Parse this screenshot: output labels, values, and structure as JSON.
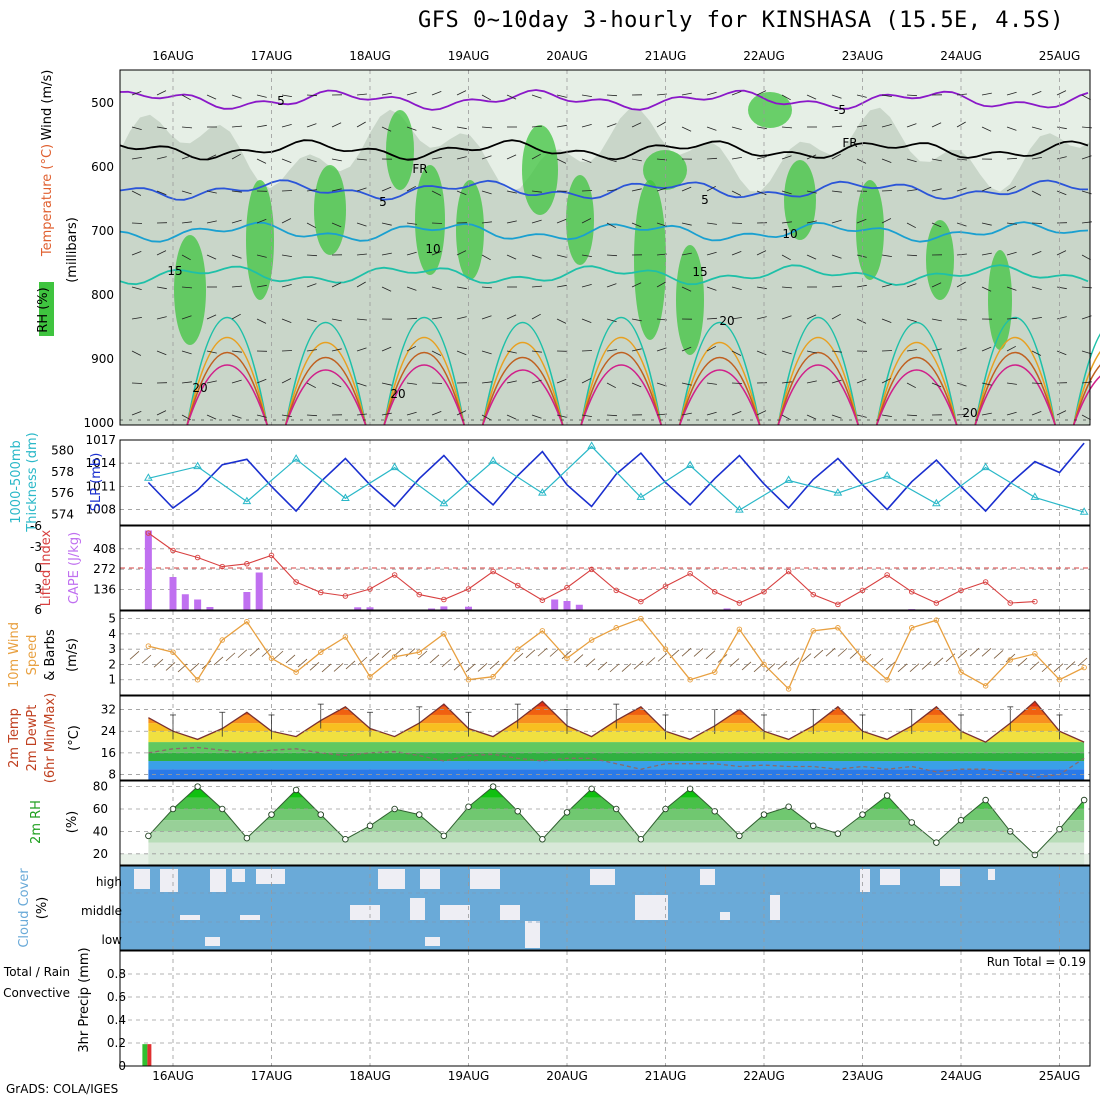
{
  "title": "GFS 0~10day 3-hourly for KINSHASA (15.5E, 4.5S)",
  "credit": "GrADS: COLA/IGES",
  "dates": [
    "16AUG",
    "17AUG",
    "18AUG",
    "19AUG",
    "20AUG",
    "21AUG",
    "22AUG",
    "23AUG",
    "24AUG",
    "25AUG"
  ],
  "colors": {
    "rh_green": "#3fc43f",
    "rh_light": "#e6efe6",
    "rh_mid": "#c9d6c9",
    "temp_purple": "#8a18c8",
    "temp_blue": "#2b55d8",
    "temp_cyan": "#1aa0d0",
    "temp_teal": "#1ec0a8",
    "temp_orange": "#e8a020",
    "temp_brown": "#c06020",
    "temp_magenta": "#d0208a",
    "slp_blue": "#1a2fcf",
    "thick_cyan": "#2ab8c8",
    "cape_purple": "#c070f0",
    "li_red": "#d84040",
    "wind_orange": "#e8a040",
    "temp_line": "#7a3030",
    "rh_dot": "#ffffff",
    "cloud_blue": "#6aaad8",
    "precip_green": "#30c030",
    "precip_red": "#e03030"
  },
  "panels": {
    "upper": {
      "label_rh": "RH (%)",
      "label_temp": "Temperature (°C)",
      "label_wind": "Wind (m/s)",
      "label_unit": "(millibars)",
      "yticks": [
        "500",
        "600",
        "700",
        "800",
        "900",
        "1000"
      ],
      "contour_labels": [
        "5",
        "-5",
        "FR",
        "FR",
        "5",
        "5",
        "10",
        "10",
        "15",
        "15",
        "20",
        "20",
        "20",
        "20"
      ]
    },
    "slp": {
      "label_a": "1000-500mb",
      "label_b": "Thickness (dm)",
      "label_c": "SLP (mb)",
      "left_ticks": [
        "580",
        "578",
        "576",
        "574"
      ],
      "right_ticks": [
        "1017",
        "1014",
        "1011",
        "1008"
      ]
    },
    "cape": {
      "label_a": "Lifted Index",
      "label_b": "CAPE (J/kg)",
      "left_ticks": [
        "-6",
        "-3",
        "0",
        "3",
        "6"
      ],
      "right_ticks": [
        "408",
        "272",
        "136"
      ]
    },
    "wind10": {
      "label_a": "10m Wind",
      "label_b": "Speed",
      "label_c": "& Barbs",
      "label_d": "(m/s)",
      "ticks": [
        "5",
        "4",
        "3",
        "2",
        "1"
      ]
    },
    "temp2m": {
      "label_a": "2m Temp",
      "label_b": "2m DewPt",
      "label_c": "(6hr Min/Max)",
      "label_d": "(°C)",
      "ticks": [
        "32",
        "24",
        "16",
        "8"
      ]
    },
    "rh2m": {
      "label_a": "2m RH",
      "label_b": "(%)",
      "ticks": [
        "80",
        "60",
        "40",
        "20"
      ]
    },
    "cloud": {
      "label_a": "Cloud Cover",
      "label_b": "(%)",
      "levels": [
        "high",
        "middle",
        "low"
      ]
    },
    "precip": {
      "label_a": "Total / Rain",
      "label_b": "Convective",
      "label_c": "3hr Precip (mm)",
      "ticks": [
        "0.8",
        "0.6",
        "0.4",
        "0.2",
        "0"
      ],
      "run_total": "Run Total = 0.19"
    }
  },
  "chart_data": [
    {
      "type": "line",
      "title": "Sea-level pressure",
      "ylabel": "SLP (mb)",
      "ylim": [
        1006,
        1017
      ],
      "x": [
        "15AUG18",
        "16AUG00",
        "16AUG06",
        "16AUG12",
        "16AUG18",
        "17AUG00",
        "17AUG06",
        "17AUG12",
        "17AUG18",
        "18AUG00",
        "18AUG06",
        "18AUG12",
        "18AUG18",
        "19AUG00",
        "19AUG06",
        "19AUG12",
        "19AUG18",
        "20AUG00",
        "20AUG06",
        "20AUG12",
        "20AUG18",
        "21AUG00",
        "21AUG06",
        "21AUG12",
        "21AUG18",
        "22AUG00",
        "22AUG06",
        "22AUG12",
        "22AUG18",
        "23AUG00",
        "23AUG06",
        "23AUG12",
        "23AUG18",
        "24AUG00",
        "24AUG06",
        "24AUG12",
        "24AUG18",
        "25AUG00",
        "25AUG06"
      ],
      "series": [
        {
          "name": "SLP",
          "values": [
            1011.5,
            1008.2,
            1010.5,
            1013.8,
            1014.5,
            1011.0,
            1007.8,
            1011.6,
            1014.6,
            1011.2,
            1008.4,
            1012.0,
            1015.0,
            1011.4,
            1008.6,
            1012.4,
            1015.5,
            1011.2,
            1008.4,
            1012.6,
            1015.3,
            1011.5,
            1008.6,
            1012.0,
            1015.0,
            1011.3,
            1008.2,
            1011.9,
            1014.6,
            1011.2,
            1008.0,
            1011.6,
            1014.4,
            1011.0,
            1007.8,
            1011.4,
            1014.2,
            1012.8,
            1016.6
          ]
        }
      ]
    },
    {
      "type": "line",
      "title": "1000-500mb thickness",
      "ylabel": "Thickness (dm)",
      "ylim": [
        573,
        581
      ],
      "x": [
        "15AUG18",
        "16AUG06",
        "16AUG18",
        "17AUG06",
        "17AUG18",
        "18AUG06",
        "18AUG18",
        "19AUG06",
        "19AUG18",
        "20AUG06",
        "20AUG18",
        "21AUG06",
        "21AUG18",
        "22AUG06",
        "22AUG18",
        "23AUG06",
        "23AUG18",
        "24AUG06",
        "24AUG18",
        "25AUG06"
      ],
      "series": [
        {
          "name": "Thickness",
          "values": [
            577.4,
            578.5,
            575.2,
            579.2,
            575.5,
            578.4,
            575.0,
            579.0,
            576.0,
            580.4,
            575.6,
            578.6,
            574.4,
            577.2,
            576.0,
            577.6,
            575.0,
            578.4,
            575.6,
            574.2
          ]
        }
      ]
    },
    {
      "type": "bar",
      "title": "CAPE",
      "ylabel": "CAPE (J/kg)",
      "ylim": [
        0,
        560
      ],
      "categories": [
        "15AUG18",
        "16AUG00",
        "16AUG03",
        "16AUG06",
        "16AUG09",
        "16AUG18",
        "16AUG21",
        "17AUG21",
        "18AUG00",
        "18AUG15",
        "18AUG18",
        "19AUG00",
        "19AUG21",
        "20AUG00",
        "20AUG03",
        "21AUG15",
        "23AUG12"
      ],
      "values": [
        530,
        220,
        105,
        70,
        20,
        120,
        250,
        18,
        18,
        10,
        24,
        22,
        70,
        60,
        35,
        10,
        6
      ]
    },
    {
      "type": "line",
      "title": "Lifted Index",
      "ylabel": "Lifted Index",
      "ylim": [
        -6,
        6
      ],
      "x": [
        "15AUG18",
        "16AUG00",
        "16AUG06",
        "16AUG12",
        "16AUG18",
        "17AUG00",
        "17AUG06",
        "17AUG12",
        "17AUG18",
        "18AUG00",
        "18AUG06",
        "18AUG12",
        "18AUG18",
        "19AUG00",
        "19AUG06",
        "19AUG12",
        "19AUG18",
        "20AUG00",
        "20AUG06",
        "20AUG12",
        "20AUG18",
        "21AUG00",
        "21AUG06",
        "21AUG12",
        "21AUG18",
        "22AUG00",
        "22AUG06",
        "22AUG12",
        "22AUG18",
        "23AUG00",
        "23AUG06",
        "23AUG12",
        "23AUG18",
        "24AUG00",
        "24AUG06",
        "24AUG12",
        "24AUG18"
      ],
      "series": [
        {
          "name": "LI",
          "values": [
            -5.0,
            -2.5,
            -1.5,
            -0.2,
            -0.6,
            -1.8,
            2.0,
            3.5,
            4.0,
            3.0,
            1.0,
            3.8,
            4.5,
            3.0,
            0.5,
            2.5,
            4.6,
            2.8,
            0.2,
            3.2,
            4.8,
            2.6,
            0.8,
            3.4,
            5.0,
            3.4,
            0.5,
            3.8,
            5.2,
            3.2,
            1.0,
            3.4,
            5.0,
            3.2,
            2.0,
            5.0,
            4.8
          ]
        }
      ]
    },
    {
      "type": "line",
      "title": "10m Wind Speed",
      "ylabel": "(m/s)",
      "ylim": [
        0,
        5.5
      ],
      "x": [
        "15AUG18",
        "16AUG00",
        "16AUG06",
        "16AUG12",
        "16AUG18",
        "17AUG00",
        "17AUG06",
        "17AUG12",
        "17AUG18",
        "18AUG00",
        "18AUG06",
        "18AUG12",
        "18AUG18",
        "19AUG00",
        "19AUG06",
        "19AUG12",
        "19AUG18",
        "20AUG00",
        "20AUG06",
        "20AUG12",
        "20AUG18",
        "21AUG00",
        "21AUG06",
        "21AUG12",
        "21AUG18",
        "22AUG00",
        "22AUG06",
        "22AUG12",
        "22AUG18",
        "23AUG00",
        "23AUG06",
        "23AUG12",
        "23AUG18",
        "24AUG00",
        "24AUG06",
        "24AUG12",
        "24AUG18",
        "25AUG00",
        "25AUG06"
      ],
      "series": [
        {
          "name": "Wind speed",
          "values": [
            3.2,
            2.8,
            1.0,
            3.6,
            4.8,
            2.4,
            1.5,
            2.8,
            3.8,
            1.2,
            2.5,
            2.8,
            4.0,
            1.0,
            1.2,
            3.0,
            4.2,
            2.4,
            3.6,
            4.4,
            5.0,
            3.0,
            1.0,
            1.5,
            4.3,
            2.0,
            0.4,
            4.2,
            4.4,
            2.4,
            1.0,
            4.4,
            4.9,
            1.5,
            0.6,
            2.3,
            2.7,
            1.0,
            1.8
          ]
        }
      ]
    },
    {
      "type": "area",
      "title": "2m Temperature",
      "ylabel": "(°C)",
      "ylim": [
        6,
        37
      ],
      "x": [
        "15AUG18",
        "16AUG00",
        "16AUG06",
        "16AUG12",
        "16AUG18",
        "17AUG00",
        "17AUG06",
        "17AUG12",
        "17AUG18",
        "18AUG00",
        "18AUG06",
        "18AUG12",
        "18AUG18",
        "19AUG00",
        "19AUG06",
        "19AUG12",
        "19AUG18",
        "20AUG00",
        "20AUG06",
        "20AUG12",
        "20AUG18",
        "21AUG00",
        "21AUG06",
        "21AUG12",
        "21AUG18",
        "22AUG00",
        "22AUG06",
        "22AUG12",
        "22AUG18",
        "23AUG00",
        "23AUG06",
        "23AUG12",
        "23AUG18",
        "24AUG00",
        "24AUG06",
        "24AUG12",
        "24AUG18",
        "25AUG00",
        "25AUG06"
      ],
      "series": [
        {
          "name": "2m Temp",
          "values": [
            29,
            24,
            21,
            25,
            31,
            24,
            22,
            28,
            33,
            25,
            22,
            27,
            34,
            25,
            22,
            28,
            35,
            26,
            22,
            28,
            33,
            24,
            21,
            26,
            32,
            24,
            21,
            26,
            33,
            24,
            21,
            26,
            33,
            24,
            20,
            27,
            35,
            24,
            20
          ]
        },
        {
          "name": "2m DewPt",
          "values": [
            16,
            17.5,
            18,
            17,
            16,
            17,
            17.5,
            16,
            15,
            16,
            16.5,
            15,
            13,
            15,
            15.5,
            14,
            13,
            14,
            14,
            12,
            10,
            12,
            12,
            12,
            11,
            11.5,
            11,
            11,
            10,
            11,
            10,
            11,
            9,
            10,
            10,
            9,
            7,
            8,
            14
          ]
        }
      ]
    },
    {
      "type": "area",
      "title": "2m RH",
      "ylabel": "(%)",
      "ylim": [
        10,
        85
      ],
      "x": [
        "15AUG18",
        "16AUG00",
        "16AUG06",
        "16AUG12",
        "16AUG18",
        "17AUG00",
        "17AUG06",
        "17AUG12",
        "17AUG18",
        "18AUG00",
        "18AUG06",
        "18AUG12",
        "18AUG18",
        "19AUG00",
        "19AUG06",
        "19AUG12",
        "19AUG18",
        "20AUG00",
        "20AUG06",
        "20AUG12",
        "20AUG18",
        "21AUG00",
        "21AUG06",
        "21AUG12",
        "21AUG18",
        "22AUG00",
        "22AUG06",
        "22AUG12",
        "22AUG18",
        "23AUG00",
        "23AUG06",
        "23AUG12",
        "23AUG18",
        "24AUG00",
        "24AUG06",
        "24AUG12",
        "24AUG18",
        "25AUG00",
        "25AUG06"
      ],
      "series": [
        {
          "name": "2m RH",
          "values": [
            36,
            60,
            80,
            60,
            34,
            55,
            77,
            55,
            33,
            45,
            60,
            55,
            36,
            62,
            80,
            58,
            33,
            57,
            78,
            60,
            33,
            60,
            78,
            58,
            36,
            55,
            62,
            45,
            38,
            55,
            72,
            48,
            30,
            50,
            68,
            40,
            19,
            42,
            68
          ]
        }
      ]
    },
    {
      "type": "bar",
      "title": "3hr Precip (mm)",
      "ylabel": "3hr Precip (mm)",
      "ylim": [
        0,
        1.0
      ],
      "categories": [
        "15AUG18"
      ],
      "series": [
        {
          "name": "Total / Rain",
          "values": [
            0.19
          ]
        },
        {
          "name": "Convective",
          "values": [
            0.19
          ]
        }
      ]
    }
  ]
}
